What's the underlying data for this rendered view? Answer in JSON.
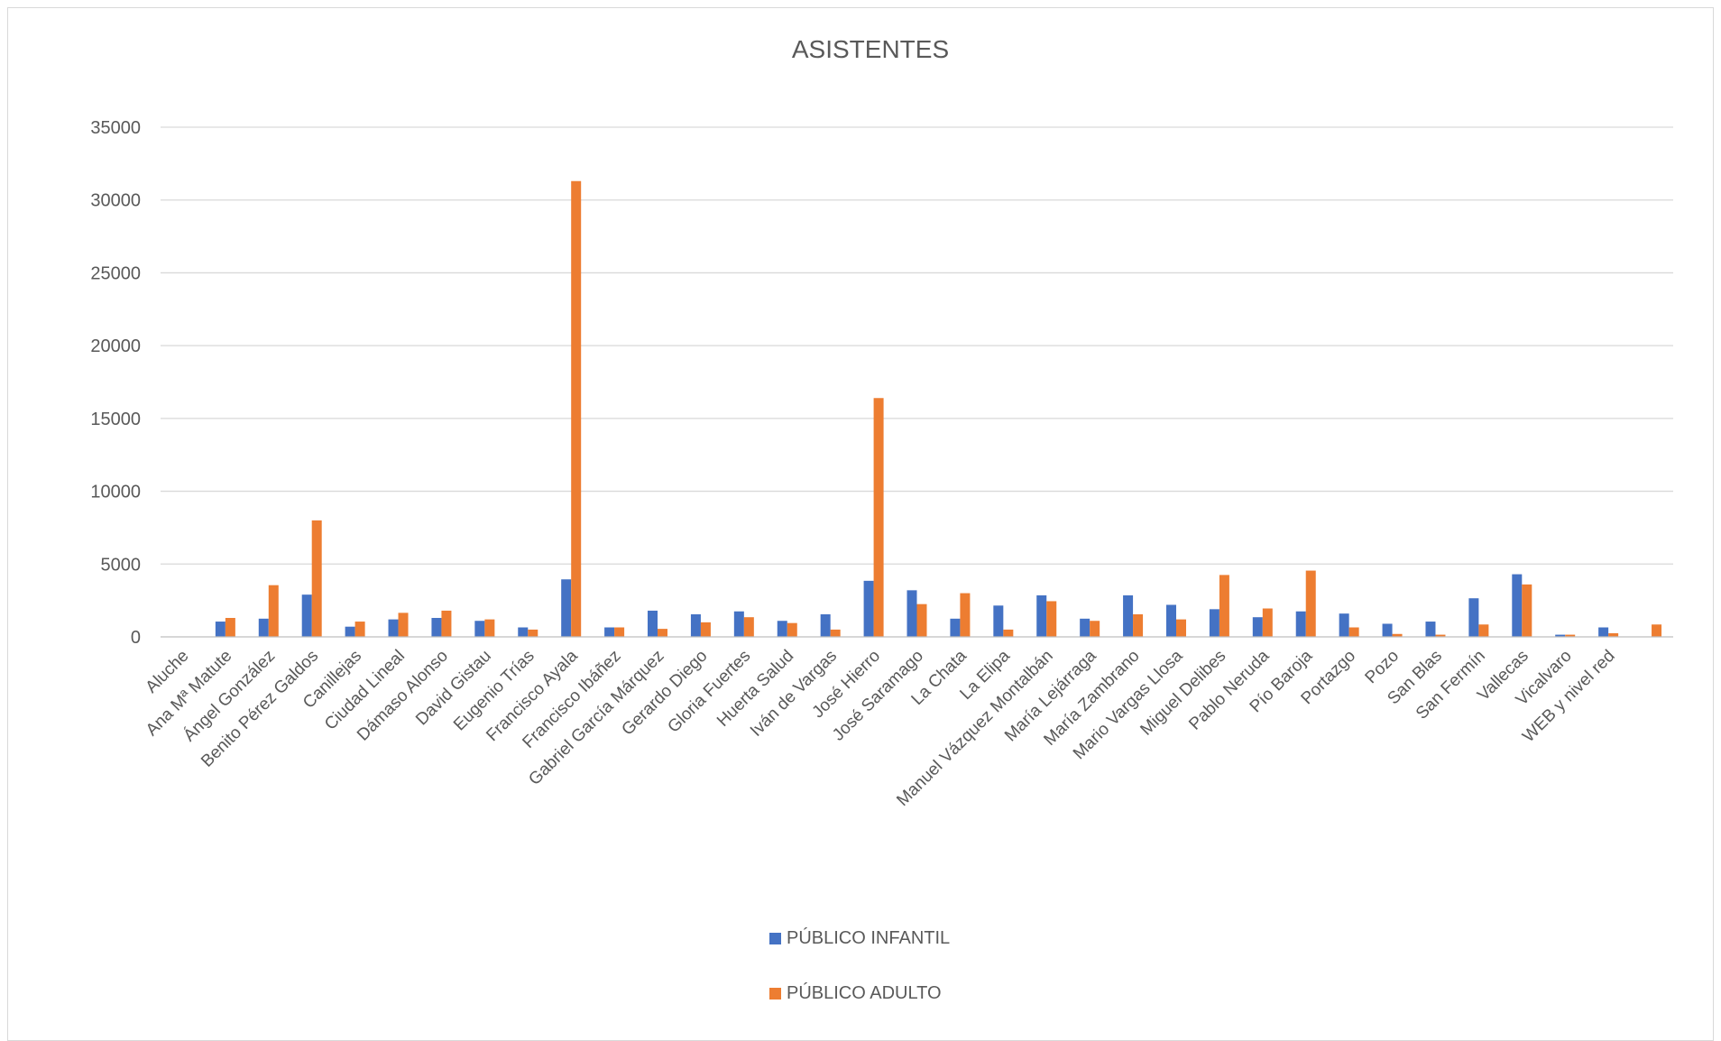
{
  "chart_data": {
    "type": "bar",
    "title": "ASISTENTES",
    "xlabel": "",
    "ylabel": "",
    "ylim": [
      0,
      35000
    ],
    "yticks": [
      0,
      5000,
      10000,
      15000,
      20000,
      25000,
      30000,
      35000
    ],
    "grid": true,
    "legend_position": "bottom",
    "categories": [
      "Aluche",
      "Ana Mª Matute",
      "Ángel González",
      "Benito Pérez Galdos",
      "Canillejas",
      "Ciudad Lineal",
      "Dámaso Alonso",
      "David Gistau",
      "Eugenio Trías",
      "Francisco Ayala",
      "Francisco Ibáñez",
      "Gabriel García Márquez",
      "Gerardo Diego",
      "Gloria Fuertes",
      "Huerta Salud",
      "Iván de Vargas",
      "José Hierro",
      "José Saramago",
      "La Chata",
      "La Elipa",
      "Manuel Vázquez Montalbán",
      "María Lejárraga",
      "María Zambrano",
      "Mario Vargas Llosa",
      "Miguel Delibes",
      "Pablo Neruda",
      "Pío Baroja",
      "Portazgo",
      "Pozo",
      "San Blas",
      "San Fermín",
      "Vallecas",
      "Vicalvaro",
      "WEB y nivel red",
      ""
    ],
    "series": [
      {
        "name": "PÚBLICO INFANTIL",
        "color": "#4472C4",
        "values": [
          0,
          1050,
          1250,
          2900,
          700,
          1200,
          1300,
          1100,
          650,
          3950,
          650,
          1800,
          1550,
          1750,
          1100,
          1550,
          3850,
          3200,
          1250,
          2150,
          2850,
          1250,
          2850,
          2200,
          1900,
          1350,
          1750,
          1600,
          900,
          1050,
          2650,
          4300,
          150,
          650,
          0
        ]
      },
      {
        "name": "PÚBLICO ADULTO",
        "color": "#ED7D31",
        "values": [
          0,
          1300,
          3550,
          8000,
          1050,
          1650,
          1800,
          1200,
          500,
          31300,
          650,
          550,
          1000,
          1350,
          950,
          500,
          16400,
          2250,
          3000,
          500,
          2450,
          1100,
          1550,
          1200,
          4250,
          1950,
          4550,
          650,
          200,
          150,
          850,
          3600,
          150,
          250,
          850
        ]
      }
    ]
  }
}
